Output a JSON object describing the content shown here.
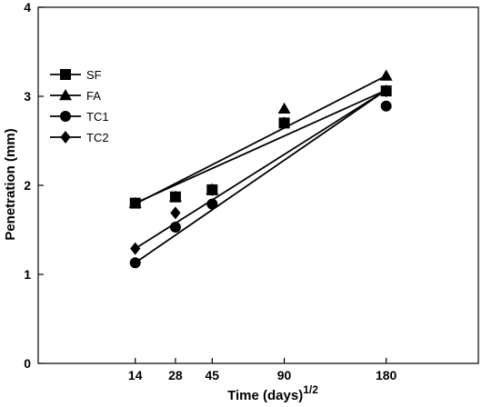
{
  "chart_data": {
    "type": "scatter",
    "xlabel": "Time (days)",
    "xlabel_superscript": "1/2",
    "ylabel": "Penetration (mm)",
    "x_scale": "sqrt",
    "x_ticks": [
      14,
      28,
      45,
      90,
      180
    ],
    "xlim": [
      0,
      288
    ],
    "ylim": [
      0,
      4
    ],
    "y_ticks": [
      0,
      1,
      2,
      3,
      4
    ],
    "grid": false,
    "legend_position": "top-left",
    "series": [
      {
        "name": "SF",
        "marker": "square",
        "points": [
          [
            14,
            1.8
          ],
          [
            28,
            1.87
          ],
          [
            45,
            1.95
          ],
          [
            90,
            2.7
          ],
          [
            180,
            3.06
          ]
        ],
        "fit_line": [
          [
            14,
            1.8
          ],
          [
            180,
            3.07
          ]
        ]
      },
      {
        "name": "FA",
        "marker": "triangle",
        "points": [
          [
            14,
            1.8
          ],
          [
            28,
            1.87
          ],
          [
            45,
            1.95
          ],
          [
            90,
            2.86
          ],
          [
            180,
            3.23
          ]
        ],
        "fit_line": [
          [
            14,
            1.79
          ],
          [
            180,
            3.23
          ]
        ]
      },
      {
        "name": "TC1",
        "marker": "circle",
        "points": [
          [
            14,
            1.13
          ],
          [
            28,
            1.53
          ],
          [
            45,
            1.79
          ],
          [
            90,
            2.7
          ],
          [
            180,
            2.89
          ]
        ],
        "fit_line": [
          [
            14,
            1.13
          ],
          [
            180,
            3.07
          ]
        ]
      },
      {
        "name": "TC2",
        "marker": "diamond",
        "points": [
          [
            14,
            1.29
          ],
          [
            28,
            1.69
          ],
          [
            45,
            1.95
          ],
          [
            90,
            2.7
          ],
          [
            180,
            3.06
          ]
        ],
        "fit_line": [
          [
            14,
            1.29
          ],
          [
            180,
            3.07
          ]
        ]
      }
    ],
    "colors": {
      "ink": "#000000",
      "background": "#ffffff"
    }
  }
}
